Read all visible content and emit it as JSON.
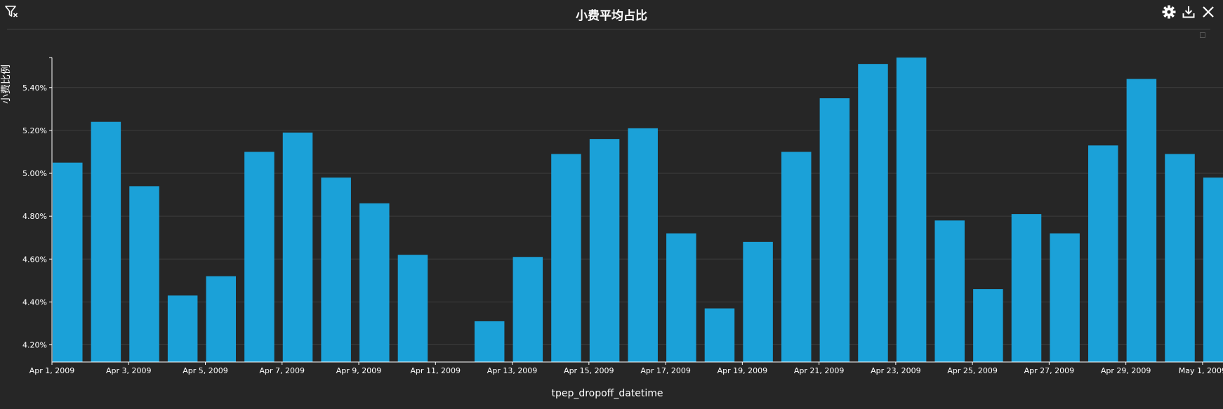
{
  "header": {
    "title": "小费平均占比"
  },
  "icons": {
    "filter": "filter-clear-icon",
    "settings": "gear-icon",
    "download": "download-icon",
    "close": "close-icon"
  },
  "colors": {
    "background": "#262626",
    "bar": "#1ba1d8",
    "grid": "#3e3e3e",
    "axis": "#ffffff"
  },
  "chart_data": {
    "type": "bar",
    "xlabel": "tpep_dropoff_datetime",
    "ylabel": "小费比例",
    "ylim": [
      4.12,
      5.54
    ],
    "y_unit": "%",
    "grid": true,
    "yticks": [
      4.2,
      4.4,
      4.6,
      4.8,
      5.0,
      5.2,
      5.4
    ],
    "ytick_labels": [
      "4.20%",
      "4.40%",
      "4.60%",
      "4.80%",
      "5.00%",
      "5.20%",
      "5.40%"
    ],
    "xtick_labels": [
      "Apr 1, 2009",
      "Apr 3, 2009",
      "Apr 5, 2009",
      "Apr 7, 2009",
      "Apr 9, 2009",
      "Apr 11, 2009",
      "Apr 13, 2009",
      "Apr 15, 2009",
      "Apr 17, 2009",
      "Apr 19, 2009",
      "Apr 21, 2009",
      "Apr 23, 2009",
      "Apr 25, 2009",
      "Apr 27, 2009",
      "Apr 29, 2009",
      "May 1, 2009"
    ],
    "categories": [
      "Apr 1, 2009",
      "Apr 2, 2009",
      "Apr 3, 2009",
      "Apr 4, 2009",
      "Apr 5, 2009",
      "Apr 6, 2009",
      "Apr 7, 2009",
      "Apr 8, 2009",
      "Apr 9, 2009",
      "Apr 10, 2009",
      "Apr 11, 2009",
      "Apr 12, 2009",
      "Apr 13, 2009",
      "Apr 14, 2009",
      "Apr 15, 2009",
      "Apr 16, 2009",
      "Apr 17, 2009",
      "Apr 18, 2009",
      "Apr 19, 2009",
      "Apr 20, 2009",
      "Apr 21, 2009",
      "Apr 22, 2009",
      "Apr 23, 2009",
      "Apr 24, 2009",
      "Apr 25, 2009",
      "Apr 26, 2009",
      "Apr 27, 2009",
      "Apr 28, 2009",
      "Apr 29, 2009",
      "Apr 30, 2009",
      "May 1, 2009"
    ],
    "values": [
      5.05,
      5.24,
      4.94,
      4.43,
      4.52,
      5.1,
      5.19,
      4.98,
      4.86,
      4.62,
      4.12,
      4.31,
      4.61,
      5.09,
      5.16,
      5.21,
      4.72,
      4.37,
      4.68,
      5.1,
      5.35,
      5.51,
      5.54,
      4.78,
      4.46,
      4.81,
      4.72,
      5.13,
      5.44,
      5.09,
      4.98
    ]
  }
}
